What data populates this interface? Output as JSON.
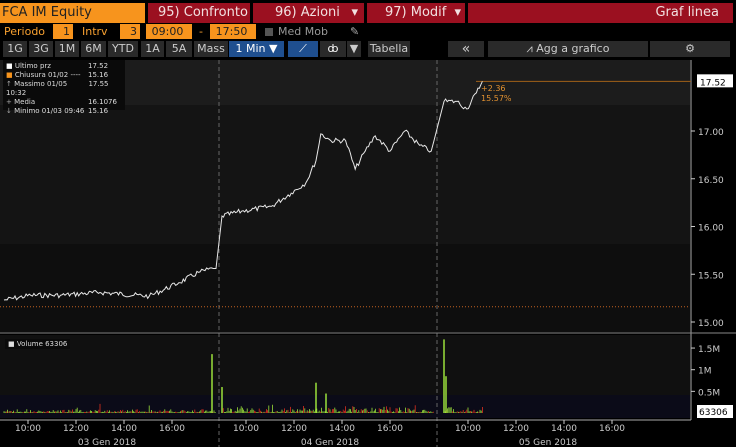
{
  "header": {
    "ticker": "FCA IM Equity",
    "compare": "95) Confronto",
    "actions": "96) Azioni",
    "edit": "97) Modif",
    "chart_type": "Graf linea"
  },
  "settings": {
    "period_label": "Periodo",
    "period": "1",
    "interval_label": "Intrv",
    "interval": "3",
    "start": "09:00",
    "dash": "-",
    "end": "17:50",
    "moving_avg": "Med Mob"
  },
  "toolbar": {
    "ranges": [
      "1G",
      "3G",
      "1M",
      "6M",
      "YTD",
      "1A",
      "5A",
      "Mass"
    ],
    "frequency": "1 Min ▼",
    "table": "Tabella",
    "collapse": "«",
    "add_to_chart": "Agg a grafico"
  },
  "legend": {
    "rows": [
      {
        "label": "Ultimo prz",
        "value": "17.52"
      },
      {
        "label": "Chiusura 01/02 ----",
        "value": "15.16"
      },
      {
        "label": "Massimo 01/05 10:32",
        "value": "17.55"
      },
      {
        "label": "Media",
        "value": "16.1076"
      },
      {
        "label": "Minimo 01/03 09:46",
        "value": "15.16"
      }
    ]
  },
  "change": {
    "abs": "+2.36",
    "pct": "15.57%"
  },
  "colors": {
    "orange": "#f7941d",
    "red": "#9b1020",
    "price_line": "#e8e8e8",
    "vol_up": "#9be03a",
    "vol_down": "#e03020"
  },
  "chart_data": [
    {
      "type": "line",
      "ylim": [
        15.0,
        17.6
      ],
      "y_ticks": [
        "15.00",
        "15.50",
        "16.00",
        "16.50",
        "17.00"
      ],
      "last_value_label": "17.52",
      "reference_line": 15.16,
      "days": [
        "03 Gen 2018",
        "04 Gen 2018",
        "05 Gen 2018"
      ],
      "x_ticks": [
        "10:00",
        "12:00",
        "14:00",
        "16:00"
      ],
      "points": [
        [
          0,
          "09:00",
          15.23
        ],
        [
          0,
          "10:07",
          15.28
        ],
        [
          0,
          "11:21",
          15.28
        ],
        [
          0,
          "13:00",
          15.31
        ],
        [
          0,
          "15:03",
          15.27
        ],
        [
          0,
          "16:17",
          15.41
        ],
        [
          0,
          "17:06",
          15.52
        ],
        [
          0,
          "17:43",
          15.56
        ],
        [
          0,
          "17:50",
          15.56
        ],
        [
          1,
          "09:00",
          16.11
        ],
        [
          1,
          "09:49",
          16.16
        ],
        [
          1,
          "11:03",
          16.21
        ],
        [
          1,
          "11:53",
          16.35
        ],
        [
          1,
          "12:30",
          16.46
        ],
        [
          1,
          "12:55",
          16.69
        ],
        [
          1,
          "13:07",
          16.97
        ],
        [
          1,
          "13:32",
          16.9
        ],
        [
          1,
          "14:09",
          16.9
        ],
        [
          1,
          "14:33",
          16.6
        ],
        [
          1,
          "14:58",
          16.79
        ],
        [
          1,
          "15:23",
          16.95
        ],
        [
          1,
          "16:00",
          16.79
        ],
        [
          1,
          "16:37",
          17.0
        ],
        [
          1,
          "17:14",
          16.85
        ],
        [
          1,
          "17:43",
          16.79
        ],
        [
          1,
          "17:50",
          16.9
        ],
        [
          2,
          "09:00",
          17.31
        ],
        [
          2,
          "09:32",
          17.31
        ],
        [
          2,
          "09:57",
          17.23
        ],
        [
          2,
          "10:21",
          17.4
        ],
        [
          2,
          "10:36",
          17.52
        ]
      ]
    },
    {
      "type": "bar",
      "series_name": "Volume 63306",
      "y_ticks": [
        "0.5M",
        "1M",
        "1.5M"
      ],
      "last_value_label": "63306",
      "ylim": [
        0,
        1800000
      ],
      "notable": [
        [
          0,
          "17:50",
          1360000
        ],
        [
          1,
          "09:00",
          600000
        ],
        [
          1,
          "12:55",
          700000
        ],
        [
          1,
          "13:20",
          450000
        ],
        [
          2,
          "09:00",
          1700000
        ],
        [
          2,
          "09:05",
          850000
        ]
      ]
    }
  ]
}
